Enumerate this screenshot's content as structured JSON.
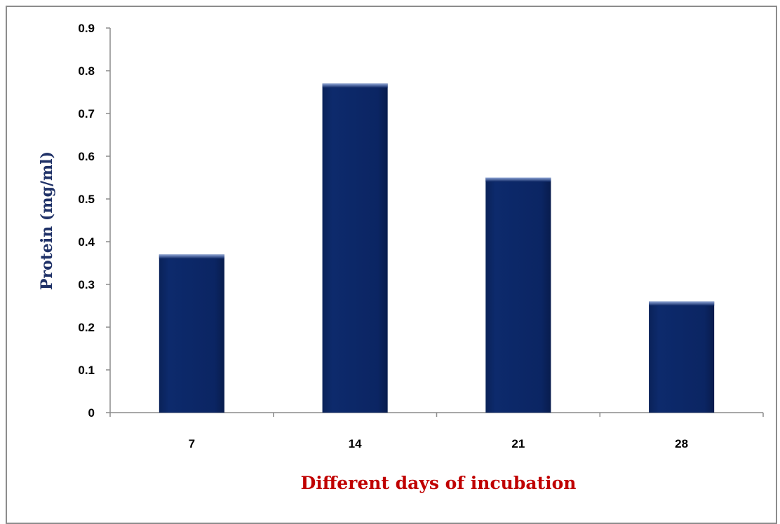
{
  "chart_data": {
    "type": "bar",
    "title": "",
    "categories": [
      "7",
      "14",
      "21",
      "28"
    ],
    "values": [
      0.37,
      0.77,
      0.55,
      0.26
    ],
    "xlabel": "Different days of incubation",
    "ylabel": "Protein (mg/ml)",
    "ylim": [
      0,
      0.9
    ],
    "yticks": [
      "0",
      "0.1",
      "0.2",
      "0.3",
      "0.4",
      "0.5",
      "0.6",
      "0.7",
      "0.8",
      "0.9"
    ],
    "grid": false,
    "legend": "none",
    "bar_color": "#0b2563",
    "xlabel_color": "#c00000",
    "ylabel_color": "#1f3167"
  }
}
